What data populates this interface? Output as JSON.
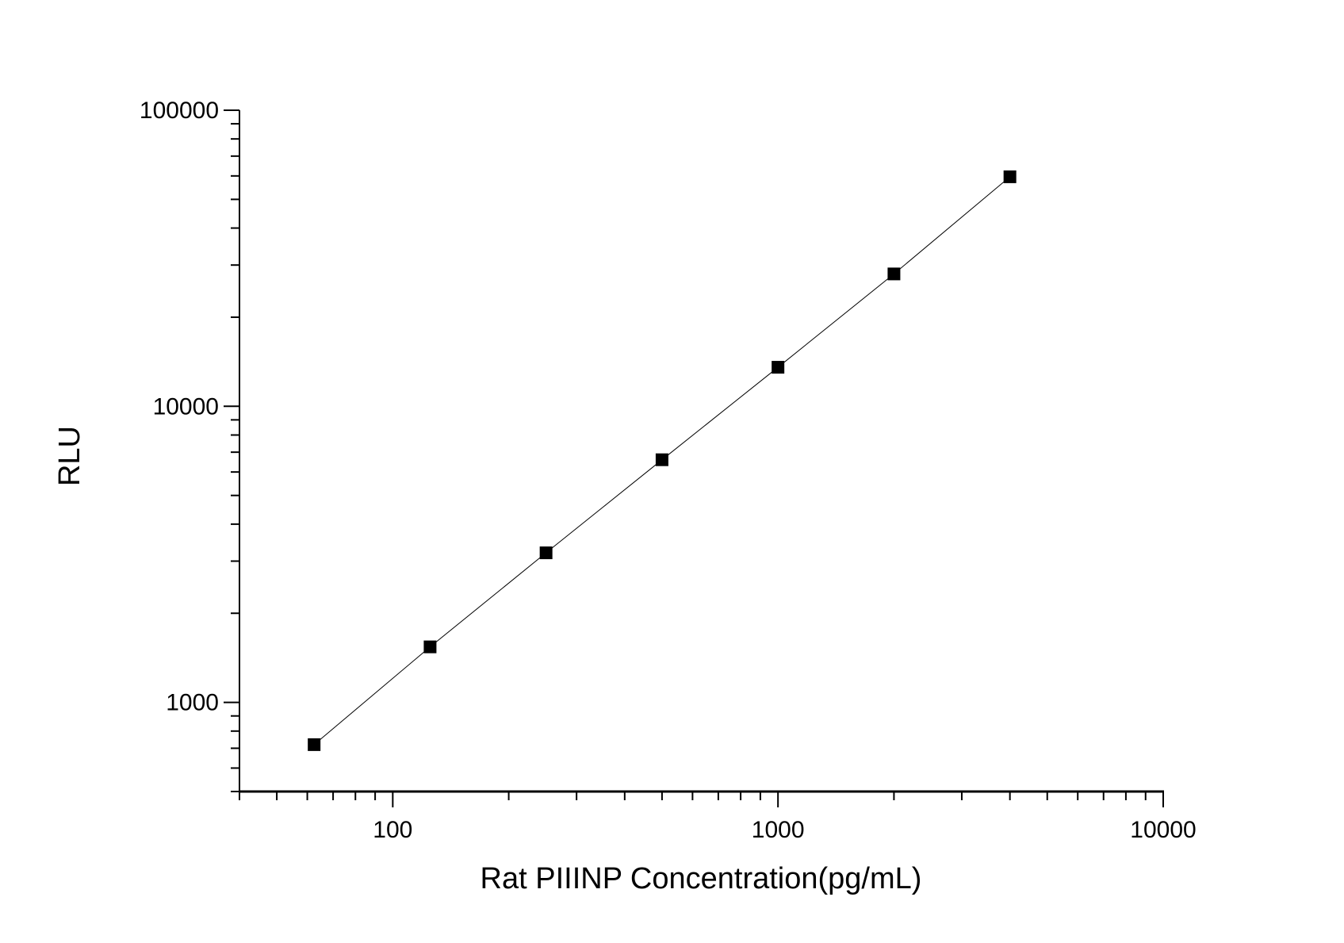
{
  "chart_data": {
    "type": "scatter",
    "title": "",
    "xlabel": "Rat PIIINP Concentration(pg/mL)",
    "ylabel": "RLU",
    "x_scale": "log",
    "y_scale": "log",
    "xlim": [
      40,
      10000
    ],
    "ylim": [
      500,
      100000
    ],
    "x_ticks": [
      "100",
      "1000",
      "10000"
    ],
    "y_ticks": [
      "1000",
      "10000",
      "100000"
    ],
    "grid": false,
    "marker": "square",
    "connected_line": true,
    "color": "#000000",
    "series": [
      {
        "x": [
          62.5,
          125,
          250,
          500,
          1000,
          2000,
          4000
        ],
        "y": [
          720,
          1540,
          3200,
          6600,
          13550,
          28000,
          59600
        ]
      }
    ]
  }
}
